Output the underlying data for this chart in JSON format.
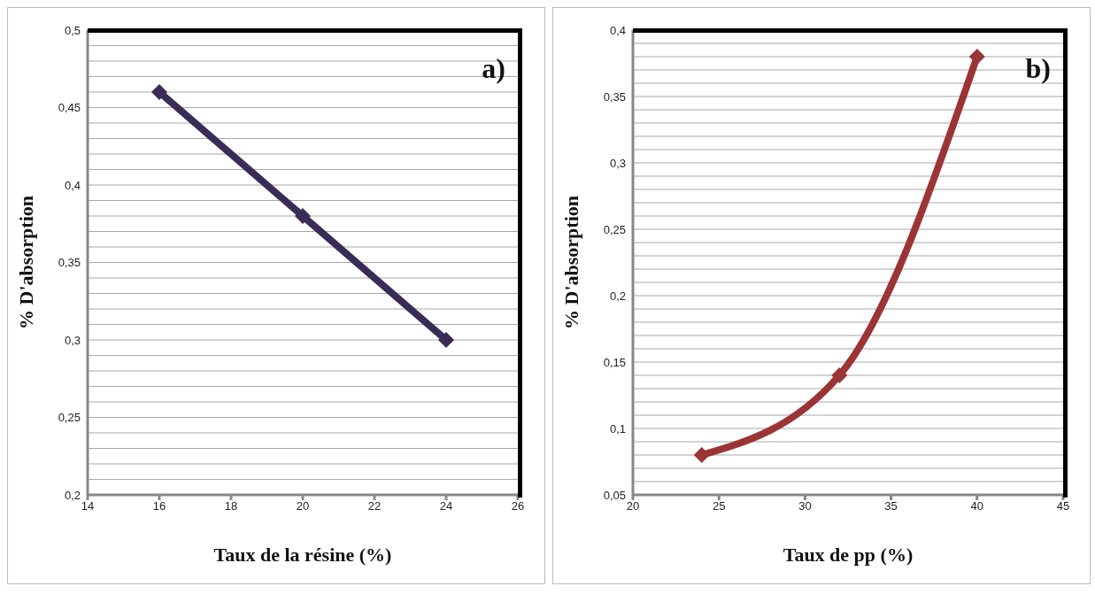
{
  "chart_data": [
    {
      "type": "line",
      "xlabel": "Taux de la résine (%)",
      "ylabel": "% D'absorption",
      "annotations": [
        "a)"
      ],
      "x": [
        16,
        20,
        24
      ],
      "series": [
        {
          "color": "#3b2c57",
          "values": [
            0.46,
            0.38,
            0.3
          ]
        }
      ],
      "xlim": [
        14,
        26
      ],
      "xticks": [
        14,
        16,
        18,
        20,
        22,
        24,
        26
      ],
      "ylim": [
        0.2,
        0.5
      ],
      "yticks": [
        {
          "value": 0.2,
          "label": "0,2"
        },
        {
          "value": 0.21,
          "label": null
        },
        {
          "value": 0.22,
          "label": null
        },
        {
          "value": 0.23,
          "label": null
        },
        {
          "value": 0.24,
          "label": null
        },
        {
          "value": 0.25,
          "label": "0,25"
        },
        {
          "value": 0.26,
          "label": null
        },
        {
          "value": 0.27,
          "label": null
        },
        {
          "value": 0.28,
          "label": null
        },
        {
          "value": 0.29,
          "label": null
        },
        {
          "value": 0.3,
          "label": "0,3"
        },
        {
          "value": 0.31,
          "label": null
        },
        {
          "value": 0.32,
          "label": null
        },
        {
          "value": 0.33,
          "label": null
        },
        {
          "value": 0.34,
          "label": null
        },
        {
          "value": 0.35,
          "label": "0,35"
        },
        {
          "value": 0.36,
          "label": null
        },
        {
          "value": 0.37,
          "label": null
        },
        {
          "value": 0.38,
          "label": null
        },
        {
          "value": 0.39,
          "label": null
        },
        {
          "value": 0.4,
          "label": "0,4"
        },
        {
          "value": 0.41,
          "label": null
        },
        {
          "value": 0.42,
          "label": null
        },
        {
          "value": 0.43,
          "label": null
        },
        {
          "value": 0.44,
          "label": null
        },
        {
          "value": 0.45,
          "label": "0,45"
        },
        {
          "value": 0.46,
          "label": null
        },
        {
          "value": 0.47,
          "label": null
        },
        {
          "value": 0.48,
          "label": null
        },
        {
          "value": 0.49,
          "label": null
        },
        {
          "value": 0.5,
          "label": "0,5"
        }
      ],
      "grid": "y",
      "legend": false,
      "marker": "diamond",
      "line_style": "solid"
    },
    {
      "type": "line",
      "xlabel": "Taux de pp (%)",
      "ylabel": "% D'absorption",
      "annotations": [
        "b)"
      ],
      "x": [
        24,
        32,
        40
      ],
      "series": [
        {
          "color": "#9b3535",
          "values": [
            0.08,
            0.14,
            0.38
          ]
        }
      ],
      "xlim": [
        20,
        45
      ],
      "xticks": [
        20,
        25,
        30,
        35,
        40,
        45
      ],
      "ylim": [
        0.05,
        0.4
      ],
      "yticks": [
        {
          "value": 0.05,
          "label": "0,05"
        },
        {
          "value": 0.06,
          "label": null
        },
        {
          "value": 0.07,
          "label": null
        },
        {
          "value": 0.08,
          "label": null
        },
        {
          "value": 0.09,
          "label": null
        },
        {
          "value": 0.1,
          "label": "0,1"
        },
        {
          "value": 0.11,
          "label": null
        },
        {
          "value": 0.12,
          "label": null
        },
        {
          "value": 0.13,
          "label": null
        },
        {
          "value": 0.14,
          "label": null
        },
        {
          "value": 0.15,
          "label": "0,15"
        },
        {
          "value": 0.16,
          "label": null
        },
        {
          "value": 0.17,
          "label": null
        },
        {
          "value": 0.18,
          "label": null
        },
        {
          "value": 0.19,
          "label": null
        },
        {
          "value": 0.2,
          "label": "0,2"
        },
        {
          "value": 0.21,
          "label": null
        },
        {
          "value": 0.22,
          "label": null
        },
        {
          "value": 0.23,
          "label": null
        },
        {
          "value": 0.24,
          "label": null
        },
        {
          "value": 0.25,
          "label": "0,25"
        },
        {
          "value": 0.26,
          "label": null
        },
        {
          "value": 0.27,
          "label": null
        },
        {
          "value": 0.28,
          "label": null
        },
        {
          "value": 0.29,
          "label": null
        },
        {
          "value": 0.3,
          "label": "0,3"
        },
        {
          "value": 0.31,
          "label": null
        },
        {
          "value": 0.32,
          "label": null
        },
        {
          "value": 0.33,
          "label": null
        },
        {
          "value": 0.34,
          "label": null
        },
        {
          "value": 0.35,
          "label": "0,35"
        },
        {
          "value": 0.36,
          "label": null
        },
        {
          "value": 0.37,
          "label": null
        },
        {
          "value": 0.38,
          "label": null
        },
        {
          "value": 0.39,
          "label": null
        },
        {
          "value": 0.4,
          "label": "0,4"
        }
      ],
      "grid": "y",
      "legend": false,
      "marker": "diamond",
      "line_style": "solid"
    }
  ]
}
